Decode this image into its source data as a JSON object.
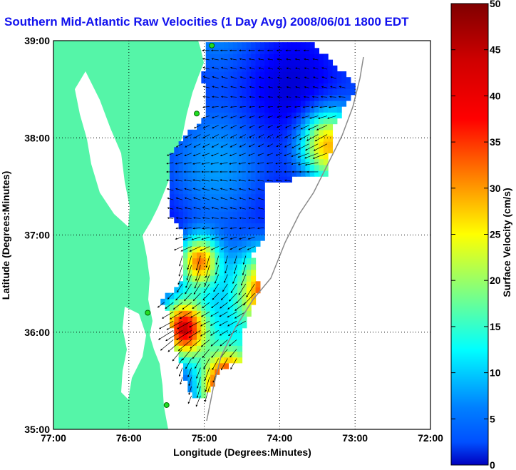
{
  "title": "Southern Mid-Atlantic Raw Velocities (1 Day Avg) 2008/06/01 1800 EDT",
  "map": {
    "xlabel": "Longitude (Degrees:Minutes)",
    "ylabel": "Latitude (Degrees:Minutes)",
    "x_ticks": [
      "77:00",
      "76:00",
      "75:00",
      "74:00",
      "73:00",
      "72:00"
    ],
    "y_ticks": [
      "39:00",
      "38:00",
      "37:00",
      "36:00",
      "35:00"
    ],
    "lon_range": [
      -77,
      -72
    ],
    "lat_range": [
      35,
      39
    ],
    "land_color": "#55f5a8",
    "grid": true,
    "stations": [
      {
        "lon": -74.9,
        "lat": 38.95
      },
      {
        "lon": -75.1,
        "lat": 38.25
      },
      {
        "lon": -75.75,
        "lat": 36.2
      },
      {
        "lon": -75.5,
        "lat": 35.25
      }
    ]
  },
  "colorbar": {
    "label": "Surface Velocity (cm/s)",
    "ticks": [
      "50",
      "45",
      "40",
      "35",
      "30",
      "25",
      "20",
      "15",
      "10",
      "5",
      "0"
    ],
    "min": 0,
    "max": 50,
    "colormap": "jet"
  }
}
